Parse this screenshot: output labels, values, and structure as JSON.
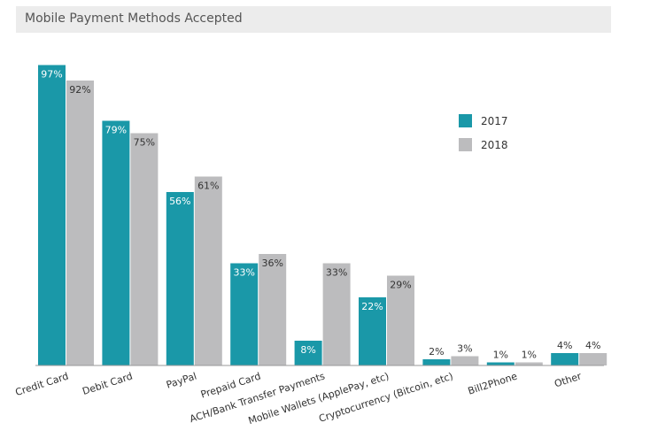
{
  "chart_data": {
    "type": "bar",
    "title": "Mobile Payment Methods Accepted",
    "categories": [
      "Credit Card",
      "Debit Card",
      "PayPal",
      "Prepaid Card",
      "ACH/Bank Transfer Payments",
      "Mobile Wallets (ApplePay, etc)",
      "Cryptocurrency (Bitcoin, etc)",
      "Bill2Phone",
      "Other"
    ],
    "series": [
      {
        "name": "2017",
        "values": [
          97,
          79,
          56,
          33,
          8,
          22,
          2,
          1,
          4
        ],
        "labels": [
          "97%",
          "79%",
          "56%",
          "33%",
          "8%",
          "22%",
          "2%",
          "1%",
          "4%"
        ],
        "color": "#1a98a8"
      },
      {
        "name": "2018",
        "values": [
          92,
          75,
          61,
          36,
          33,
          29,
          3,
          1,
          4
        ],
        "labels": [
          "92%",
          "75%",
          "61%",
          "36%",
          "33%",
          "29%",
          "3%",
          "1%",
          "4%"
        ],
        "color": "#bcbcbe"
      }
    ],
    "ylim": [
      0,
      100
    ],
    "grid": false,
    "legend_position": "top-right"
  }
}
